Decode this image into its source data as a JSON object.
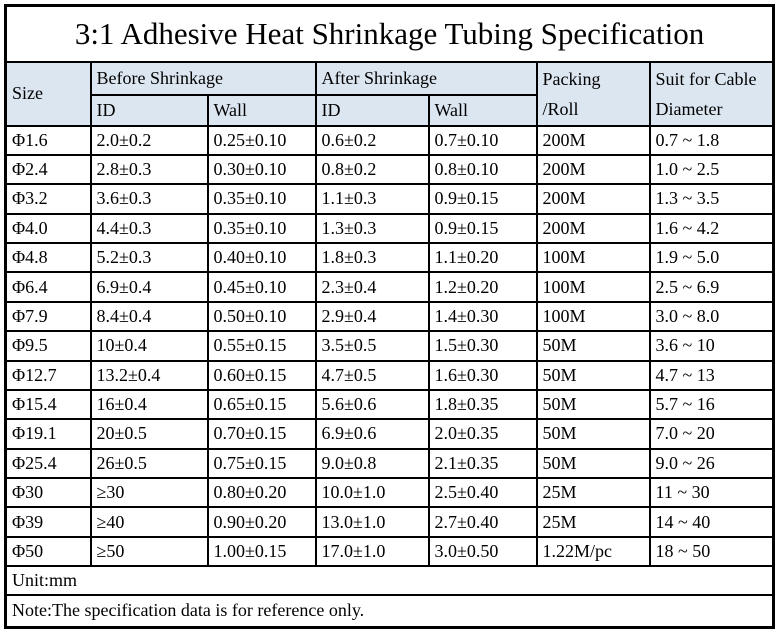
{
  "title": "3:1 Adhesive Heat Shrinkage Tubing Specification",
  "table": {
    "headers": {
      "size": "Size",
      "before": "Before Shrinkage",
      "after": "After Shrinkage",
      "id": "ID",
      "wall": "Wall",
      "packing_line1": "Packing",
      "packing_line2": "/Roll",
      "suit_line1": "Suit for Cable",
      "suit_line2": "Diameter"
    },
    "rows": [
      [
        "Φ1.6",
        "2.0±0.2",
        "0.25±0.10",
        "0.6±0.2",
        "0.7±0.10",
        "200M",
        "0.7 ~ 1.8"
      ],
      [
        "Φ2.4",
        "2.8±0.3",
        "0.30±0.10",
        "0.8±0.2",
        "0.8±0.10",
        "200M",
        "1.0 ~ 2.5"
      ],
      [
        "Φ3.2",
        "3.6±0.3",
        "0.35±0.10",
        "1.1±0.3",
        "0.9±0.15",
        "200M",
        "1.3 ~ 3.5"
      ],
      [
        "Φ4.0",
        "4.4±0.3",
        "0.35±0.10",
        "1.3±0.3",
        "0.9±0.15",
        "200M",
        "1.6 ~ 4.2"
      ],
      [
        "Φ4.8",
        "5.2±0.3",
        "0.40±0.10",
        "1.8±0.3",
        "1.1±0.20",
        "100M",
        "1.9 ~ 5.0"
      ],
      [
        "Φ6.4",
        "6.9±0.4",
        "0.45±0.10",
        "2.3±0.4",
        "1.2±0.20",
        "100M",
        "2.5 ~ 6.9"
      ],
      [
        "Φ7.9",
        "8.4±0.4",
        "0.50±0.10",
        "2.9±0.4",
        "1.4±0.30",
        "100M",
        "3.0 ~ 8.0"
      ],
      [
        "Φ9.5",
        "10±0.4",
        "0.55±0.15",
        "3.5±0.5",
        "1.5±0.30",
        "50M",
        "3.6 ~ 10"
      ],
      [
        "Φ12.7",
        "13.2±0.4",
        "0.60±0.15",
        "4.7±0.5",
        "1.6±0.30",
        "50M",
        "4.7 ~ 13"
      ],
      [
        "Φ15.4",
        "16±0.4",
        "0.65±0.15",
        "5.6±0.6",
        "1.8±0.35",
        "50M",
        "5.7 ~ 16"
      ],
      [
        "Φ19.1",
        "20±0.5",
        "0.70±0.15",
        "6.9±0.6",
        "2.0±0.35",
        "50M",
        "7.0 ~ 20"
      ],
      [
        "Φ25.4",
        "26±0.5",
        "0.75±0.15",
        "9.0±0.8",
        "2.1±0.35",
        "50M",
        "9.0 ~ 26"
      ],
      [
        "Φ30",
        "≥30",
        "0.80±0.20",
        "10.0±1.0",
        "2.5±0.40",
        "25M",
        "11 ~ 30"
      ],
      [
        "Φ39",
        "≥40",
        "0.90±0.20",
        "13.0±1.0",
        "2.7±0.40",
        "25M",
        "14 ~ 40"
      ],
      [
        "Φ50",
        "≥50",
        "1.00±0.15",
        "17.0±1.0",
        "3.0±0.50",
        "1.22M/pc",
        "18 ~ 50"
      ]
    ]
  },
  "footer": {
    "unit": "Unit:mm",
    "note": "Note:The specification data is for reference only."
  },
  "colors": {
    "header_bg": "#dce6f1",
    "border": "#000000",
    "text": "#000000"
  }
}
